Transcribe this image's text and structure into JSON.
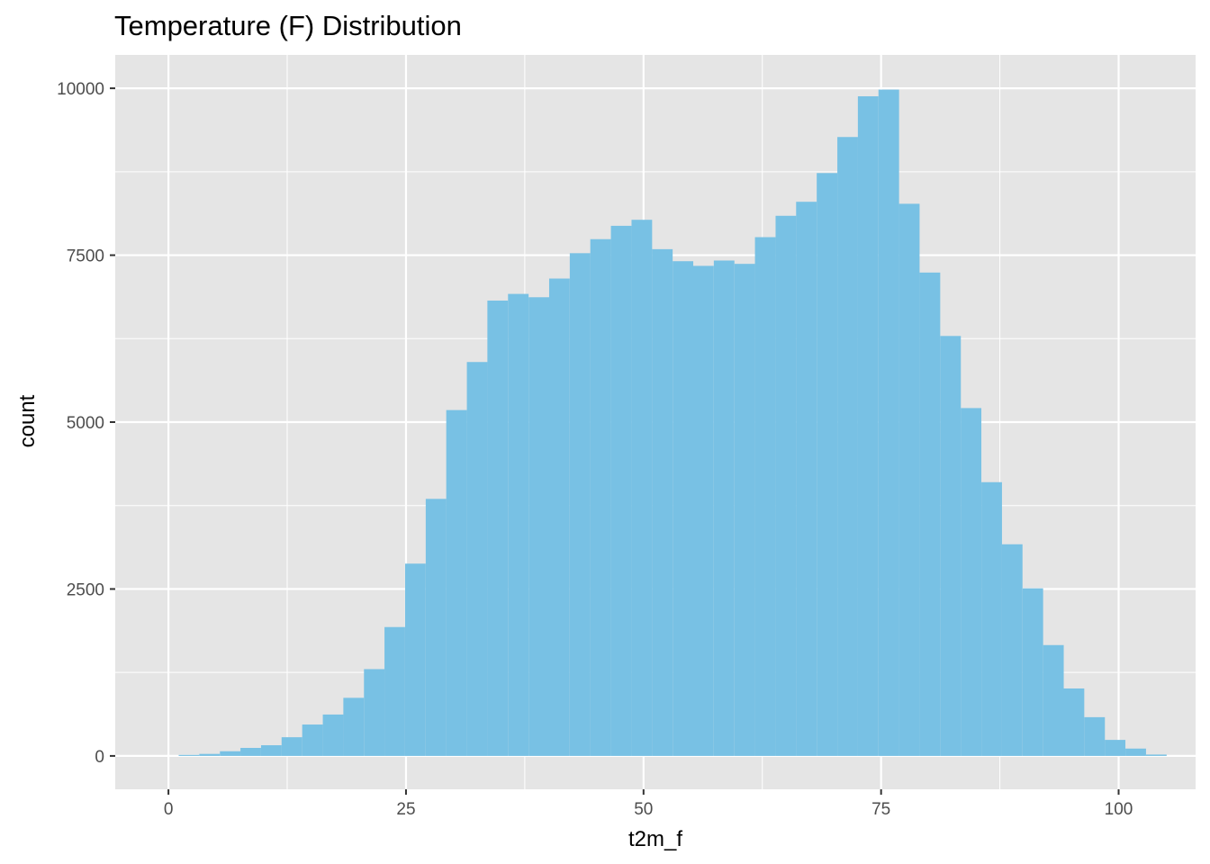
{
  "chart_data": {
    "type": "bar",
    "title": "Temperature (F) Distribution",
    "xlabel": "t2m_f",
    "ylabel": "count",
    "xlim": [
      -5.6,
      108.1
    ],
    "ylim": [
      -500,
      10500
    ],
    "x_ticks": [
      0,
      25,
      50,
      75,
      100
    ],
    "x_tick_labels": [
      "0",
      "25",
      "50",
      "75",
      "100"
    ],
    "y_ticks": [
      0,
      2500,
      5000,
      7500,
      10000
    ],
    "y_tick_labels": [
      "0",
      "2500",
      "5000",
      "7500",
      "10000"
    ],
    "grid": true,
    "bin_width": 2.166,
    "bin_centers": [
      2.16,
      4.33,
      6.5,
      8.66,
      10.83,
      12.99,
      15.16,
      17.33,
      19.49,
      21.66,
      23.82,
      25.99,
      28.16,
      30.32,
      32.49,
      34.65,
      36.82,
      38.99,
      41.15,
      43.32,
      45.48,
      47.65,
      49.82,
      51.98,
      54.15,
      56.31,
      58.48,
      60.65,
      62.81,
      64.98,
      67.14,
      69.31,
      71.48,
      73.64,
      75.81,
      77.97,
      80.14,
      82.31,
      84.47,
      86.64,
      88.8,
      90.97,
      93.14,
      95.3,
      97.47,
      99.63,
      101.8,
      103.97
    ],
    "values": [
      15,
      30,
      70,
      120,
      160,
      280,
      470,
      620,
      870,
      1300,
      1930,
      2880,
      3850,
      5180,
      5900,
      6820,
      6920,
      6870,
      7150,
      7530,
      7740,
      7940,
      8030,
      7590,
      7410,
      7340,
      7420,
      7370,
      7770,
      8090,
      8300,
      8730,
      9270,
      9880,
      9980,
      8270,
      7240,
      6290,
      5210,
      4100,
      3170,
      2510,
      1660,
      1010,
      580,
      240,
      110,
      20
    ],
    "fill_color": "#78c1e4",
    "panel_color": "#e5e5e5",
    "grid_color": "#ffffff"
  }
}
